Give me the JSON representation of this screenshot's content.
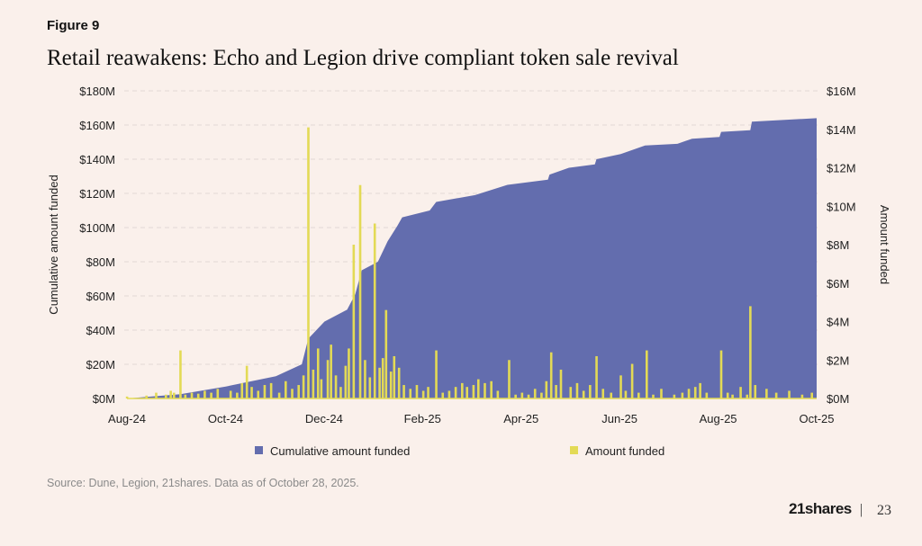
{
  "figure_label": "Figure 9",
  "footer": {
    "source": "Source: Dune, Legion, 21shares. Data as of October 28, 2025.",
    "logo": "21shares",
    "separator": "|",
    "page_number": "23"
  },
  "colors": {
    "background": "#faf0eb",
    "cumulative": "#636dae",
    "amount": "#e3da55"
  },
  "chart_data": {
    "type": "area+bar",
    "title": "Retail reawakens: Echo and Legion drive compliant token sale revival",
    "ylabel_left": "Cumulative amount funded",
    "ylabel_right": "Amount funded",
    "xlim": [
      "2024-08-01",
      "2025-10-01"
    ],
    "ylim_left": [
      0,
      180
    ],
    "ylim_right": [
      0,
      16
    ],
    "x_ticks": [
      "Aug-24",
      "Oct-24",
      "Dec-24",
      "Feb-25",
      "Apr-25",
      "Jun-25",
      "Aug-25",
      "Oct-25"
    ],
    "y_ticks_left": [
      "$0M",
      "$20M",
      "$40M",
      "$60M",
      "$80M",
      "$100M",
      "$120M",
      "$140M",
      "$160M",
      "$180M"
    ],
    "y_ticks_right": [
      "$0M",
      "$2M",
      "$4M",
      "$6M",
      "$8M",
      "$10M",
      "$12M",
      "$14M",
      "$16M"
    ],
    "grid": "horizontal dashed",
    "legend_position": "bottom",
    "legend": [
      "Cumulative amount funded",
      "Amount funded"
    ],
    "unit": "$M",
    "cumulative": [
      [
        "2024-08-01",
        0
      ],
      [
        "2024-09-03",
        2.5
      ],
      [
        "2024-10-01",
        7
      ],
      [
        "2024-11-01",
        13
      ],
      [
        "2024-11-17",
        20
      ],
      [
        "2024-11-21",
        35
      ],
      [
        "2024-12-01",
        45
      ],
      [
        "2024-12-15",
        52
      ],
      [
        "2024-12-20",
        61
      ],
      [
        "2024-12-24",
        75
      ],
      [
        "2025-01-03",
        80
      ],
      [
        "2025-01-09",
        92
      ],
      [
        "2025-01-15",
        101
      ],
      [
        "2025-01-18",
        106
      ],
      [
        "2025-02-04",
        110
      ],
      [
        "2025-02-08",
        115
      ],
      [
        "2025-03-04",
        119
      ],
      [
        "2025-03-24",
        125
      ],
      [
        "2025-04-18",
        128
      ],
      [
        "2025-04-19",
        131
      ],
      [
        "2025-05-01",
        135
      ],
      [
        "2025-05-17",
        137
      ],
      [
        "2025-05-18",
        140
      ],
      [
        "2025-06-02",
        143
      ],
      [
        "2025-06-17",
        148
      ],
      [
        "2025-07-07",
        149
      ],
      [
        "2025-07-16",
        152
      ],
      [
        "2025-08-02",
        153
      ],
      [
        "2025-08-03",
        156
      ],
      [
        "2025-08-21",
        157
      ],
      [
        "2025-08-22",
        162
      ],
      [
        "2025-10-01",
        164
      ]
    ],
    "amount": [
      [
        "2024-08-01",
        0.1
      ],
      [
        "2024-08-13",
        0.15
      ],
      [
        "2024-08-19",
        0.3
      ],
      [
        "2024-08-25",
        0.2
      ],
      [
        "2024-08-28",
        0.4
      ],
      [
        "2024-08-30",
        0.3
      ],
      [
        "2024-09-03",
        2.5
      ],
      [
        "2024-09-06",
        0.2
      ],
      [
        "2024-09-10",
        0.3
      ],
      [
        "2024-09-14",
        0.25
      ],
      [
        "2024-09-18",
        0.4
      ],
      [
        "2024-09-22",
        0.3
      ],
      [
        "2024-09-26",
        0.5
      ],
      [
        "2024-10-04",
        0.4
      ],
      [
        "2024-10-08",
        0.3
      ],
      [
        "2024-10-11",
        0.8
      ],
      [
        "2024-10-14",
        1.7
      ],
      [
        "2024-10-17",
        0.6
      ],
      [
        "2024-10-21",
        0.4
      ],
      [
        "2024-10-25",
        0.7
      ],
      [
        "2024-10-29",
        0.8
      ],
      [
        "2024-11-03",
        0.3
      ],
      [
        "2024-11-07",
        0.9
      ],
      [
        "2024-11-11",
        0.5
      ],
      [
        "2024-11-15",
        0.7
      ],
      [
        "2024-11-18",
        1.2
      ],
      [
        "2024-11-21",
        14.1
      ],
      [
        "2024-11-24",
        1.5
      ],
      [
        "2024-11-27",
        2.6
      ],
      [
        "2024-11-29",
        1.0
      ],
      [
        "2024-12-03",
        2.0
      ],
      [
        "2024-12-05",
        2.8
      ],
      [
        "2024-12-08",
        1.2
      ],
      [
        "2024-12-11",
        0.6
      ],
      [
        "2024-12-14",
        1.7
      ],
      [
        "2024-12-16",
        2.6
      ],
      [
        "2024-12-19",
        8.0
      ],
      [
        "2024-12-23",
        11.1
      ],
      [
        "2024-12-26",
        2.0
      ],
      [
        "2024-12-29",
        1.1
      ],
      [
        "2025-01-01",
        9.1
      ],
      [
        "2025-01-04",
        1.6
      ],
      [
        "2025-01-06",
        2.1
      ],
      [
        "2025-01-08",
        4.6
      ],
      [
        "2025-01-11",
        1.4
      ],
      [
        "2025-01-13",
        2.2
      ],
      [
        "2025-01-16",
        1.6
      ],
      [
        "2025-01-19",
        0.7
      ],
      [
        "2025-01-23",
        0.5
      ],
      [
        "2025-01-27",
        0.7
      ],
      [
        "2025-01-31",
        0.4
      ],
      [
        "2025-02-03",
        0.6
      ],
      [
        "2025-02-08",
        2.5
      ],
      [
        "2025-02-12",
        0.3
      ],
      [
        "2025-02-16",
        0.4
      ],
      [
        "2025-02-20",
        0.6
      ],
      [
        "2025-02-24",
        0.8
      ],
      [
        "2025-02-27",
        0.6
      ],
      [
        "2025-03-03",
        0.7
      ],
      [
        "2025-03-06",
        1.0
      ],
      [
        "2025-03-10",
        0.8
      ],
      [
        "2025-03-14",
        0.9
      ],
      [
        "2025-03-18",
        0.4
      ],
      [
        "2025-03-25",
        2.0
      ],
      [
        "2025-03-29",
        0.2
      ],
      [
        "2025-04-02",
        0.3
      ],
      [
        "2025-04-06",
        0.2
      ],
      [
        "2025-04-10",
        0.5
      ],
      [
        "2025-04-14",
        0.3
      ],
      [
        "2025-04-17",
        0.9
      ],
      [
        "2025-04-20",
        2.4
      ],
      [
        "2025-04-23",
        0.7
      ],
      [
        "2025-04-26",
        1.5
      ],
      [
        "2025-05-02",
        0.6
      ],
      [
        "2025-05-06",
        0.8
      ],
      [
        "2025-05-10",
        0.4
      ],
      [
        "2025-05-14",
        0.7
      ],
      [
        "2025-05-18",
        2.2
      ],
      [
        "2025-05-22",
        0.5
      ],
      [
        "2025-05-27",
        0.3
      ],
      [
        "2025-06-02",
        1.2
      ],
      [
        "2025-06-05",
        0.4
      ],
      [
        "2025-06-09",
        1.8
      ],
      [
        "2025-06-13",
        0.3
      ],
      [
        "2025-06-18",
        2.5
      ],
      [
        "2025-06-22",
        0.2
      ],
      [
        "2025-06-27",
        0.5
      ],
      [
        "2025-07-05",
        0.2
      ],
      [
        "2025-07-10",
        0.3
      ],
      [
        "2025-07-14",
        0.5
      ],
      [
        "2025-07-18",
        0.6
      ],
      [
        "2025-07-21",
        0.8
      ],
      [
        "2025-07-25",
        0.3
      ],
      [
        "2025-08-03",
        2.5
      ],
      [
        "2025-08-07",
        0.3
      ],
      [
        "2025-08-10",
        0.2
      ],
      [
        "2025-08-15",
        0.6
      ],
      [
        "2025-08-19",
        0.2
      ],
      [
        "2025-08-21",
        4.8
      ],
      [
        "2025-08-24",
        0.7
      ],
      [
        "2025-08-31",
        0.5
      ],
      [
        "2025-09-06",
        0.3
      ],
      [
        "2025-09-14",
        0.4
      ],
      [
        "2025-09-22",
        0.2
      ],
      [
        "2025-09-28",
        0.3
      ]
    ]
  }
}
